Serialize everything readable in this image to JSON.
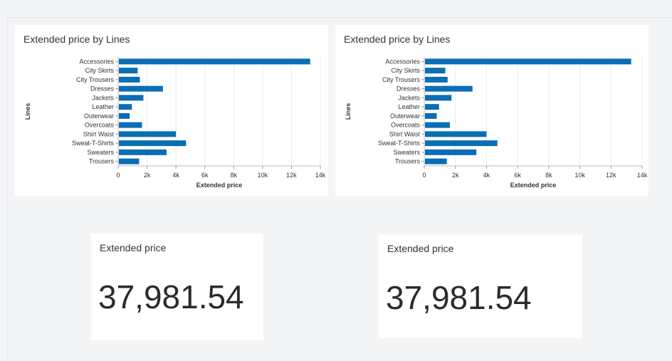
{
  "charts": [
    {
      "title": "Extended price by Lines",
      "chart_data": {
        "type": "bar",
        "orientation": "horizontal",
        "title": "Extended price by Lines",
        "xlabel": "Extended price",
        "ylabel": "Lines",
        "categories": [
          "Accessories",
          "City Skirts",
          "City Trousers",
          "Dresses",
          "Jackets",
          "Leather",
          "Outerwear",
          "Overcoats",
          "Shirt Waist",
          "Sweat-T-Shirts",
          "Sweaters",
          "Trousers"
        ],
        "values": [
          13300,
          1350,
          1500,
          3100,
          1750,
          950,
          800,
          1650,
          4000,
          4700,
          3350,
          1450
        ],
        "xlim": [
          0,
          14000
        ],
        "xticks": [
          "0",
          "2k",
          "4k",
          "6k",
          "8k",
          "10k",
          "12k",
          "14k"
        ],
        "grid": true,
        "bar_color": "#0a6eb4"
      }
    },
    {
      "title": "Extended price by Lines",
      "chart_data": {
        "type": "bar",
        "orientation": "horizontal",
        "title": "Extended price by Lines",
        "xlabel": "Extended price",
        "ylabel": "Lines",
        "categories": [
          "Accessories",
          "City Skirts",
          "City Trousers",
          "Dresses",
          "Jackets",
          "Leather",
          "Outerwear",
          "Overcoats",
          "Shirt Waist",
          "Sweat-T-Shirts",
          "Sweaters",
          "Trousers"
        ],
        "values": [
          13300,
          1350,
          1500,
          3100,
          1750,
          950,
          800,
          1650,
          4000,
          4700,
          3350,
          1450
        ],
        "xlim": [
          0,
          14000
        ],
        "xticks": [
          "0",
          "2k",
          "4k",
          "6k",
          "8k",
          "10k",
          "12k",
          "14k"
        ],
        "grid": true,
        "bar_color": "#0a6eb4"
      }
    }
  ],
  "kpis": [
    {
      "title": "Extended price",
      "value": "37,981.54"
    },
    {
      "title": "Extended price",
      "value": "37,981.54"
    }
  ]
}
